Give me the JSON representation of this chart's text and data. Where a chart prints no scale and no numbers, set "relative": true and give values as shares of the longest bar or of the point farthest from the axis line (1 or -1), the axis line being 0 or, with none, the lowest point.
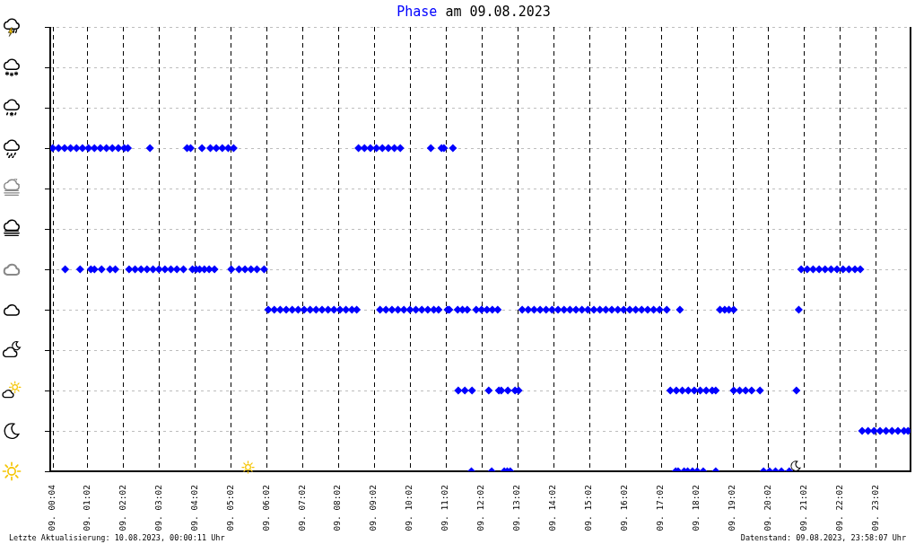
{
  "chart_data": {
    "type": "scatter",
    "title": "Phase am 09.08.2023",
    "relative": true,
    "x": [
      "2023-08-09T00:04",
      "2023-08-09T00:14",
      "2023-08-09T00:24",
      "2023-08-09T00:34",
      "2023-08-09T00:44",
      "2023-08-09T00:54",
      "2023-08-09T01:04",
      "2023-08-09T01:14",
      "2023-08-09T01:24",
      "2023-08-09T01:34",
      "2023-08-09T01:44",
      "2023-08-09T01:54",
      "2023-08-09T02:04",
      "2023-08-09T02:10",
      "2023-08-09T02:47",
      "2023-08-09T03:49",
      "2023-08-09T03:55",
      "2023-08-09T04:14",
      "2023-08-09T04:28",
      "2023-08-09T04:38",
      "2023-08-09T04:48",
      "2023-08-09T04:58",
      "2023-08-09T05:07",
      "2023-08-09T08:36",
      "2023-08-09T08:46",
      "2023-08-09T08:56",
      "2023-08-09T09:06",
      "2023-08-09T09:16",
      "2023-08-09T09:26",
      "2023-08-09T09:36",
      "2023-08-09T09:46",
      "2023-08-09T10:37",
      "2023-08-09T10:55",
      "2023-08-09T10:59",
      "2023-08-09T11:14",
      "2023-08-09T00:25",
      "2023-08-09T00:50",
      "2023-08-09T01:08",
      "2023-08-09T01:14",
      "2023-08-09T01:26",
      "2023-08-09T01:40",
      "2023-08-09T01:49",
      "2023-08-09T02:12",
      "2023-08-09T02:22",
      "2023-08-09T02:32",
      "2023-08-09T02:42",
      "2023-08-09T02:52",
      "2023-08-09T03:02",
      "2023-08-09T03:12",
      "2023-08-09T03:22",
      "2023-08-09T03:32",
      "2023-08-09T03:43",
      "2023-08-09T03:58",
      "2023-08-09T04:04",
      "2023-08-09T04:10",
      "2023-08-09T04:18",
      "2023-08-09T04:26",
      "2023-08-09T04:35",
      "2023-08-09T05:03",
      "2023-08-09T05:16",
      "2023-08-09T05:26",
      "2023-08-09T05:36",
      "2023-08-09T05:46",
      "2023-08-09T05:58",
      "2023-08-09T20:57",
      "2023-08-09T21:07",
      "2023-08-09T21:17",
      "2023-08-09T21:27",
      "2023-08-09T21:37",
      "2023-08-09T21:47",
      "2023-08-09T21:57",
      "2023-08-09T22:07",
      "2023-08-09T22:17",
      "2023-08-09T22:27",
      "2023-08-09T22:36",
      "2023-08-09T06:05",
      "2023-08-09T06:15",
      "2023-08-09T06:25",
      "2023-08-09T06:35",
      "2023-08-09T06:45",
      "2023-08-09T06:55",
      "2023-08-09T07:05",
      "2023-08-09T07:15",
      "2023-08-09T07:25",
      "2023-08-09T07:35",
      "2023-08-09T07:45",
      "2023-08-09T07:55",
      "2023-08-09T08:05",
      "2023-08-09T08:15",
      "2023-08-09T08:25",
      "2023-08-09T08:33",
      "2023-08-09T09:12",
      "2023-08-09T09:22",
      "2023-08-09T09:32",
      "2023-08-09T09:42",
      "2023-08-09T09:52",
      "2023-08-09T10:02",
      "2023-08-09T10:12",
      "2023-08-09T10:22",
      "2023-08-09T10:32",
      "2023-08-09T10:42",
      "2023-08-09T10:50",
      "2023-08-09T11:05",
      "2023-08-09T11:08",
      "2023-08-09T11:22",
      "2023-08-09T11:30",
      "2023-08-09T11:38",
      "2023-08-09T11:53",
      "2023-08-09T12:02",
      "2023-08-09T12:11",
      "2023-08-09T12:20",
      "2023-08-09T12:29",
      "2023-08-09T13:10",
      "2023-08-09T13:20",
      "2023-08-09T13:30",
      "2023-08-09T13:40",
      "2023-08-09T13:50",
      "2023-08-09T14:00",
      "2023-08-09T14:10",
      "2023-08-09T14:20",
      "2023-08-09T14:30",
      "2023-08-09T14:40",
      "2023-08-09T14:50",
      "2023-08-09T15:00",
      "2023-08-09T15:10",
      "2023-08-09T15:20",
      "2023-08-09T15:30",
      "2023-08-09T15:40",
      "2023-08-09T15:50",
      "2023-08-09T16:00",
      "2023-08-09T16:10",
      "2023-08-09T16:20",
      "2023-08-09T16:30",
      "2023-08-09T16:40",
      "2023-08-09T16:50",
      "2023-08-09T17:00",
      "2023-08-09T17:12",
      "2023-08-09T17:34",
      "2023-08-09T18:41",
      "2023-08-09T18:49",
      "2023-08-09T18:56",
      "2023-08-09T19:04",
      "2023-08-09T20:53",
      "2023-08-09T11:23",
      "2023-08-09T11:34",
      "2023-08-09T11:46",
      "2023-08-09T12:14",
      "2023-08-09T12:31",
      "2023-08-09T12:35",
      "2023-08-09T12:46",
      "2023-08-09T12:58",
      "2023-08-09T13:04",
      "2023-08-09T17:18",
      "2023-08-09T17:28",
      "2023-08-09T17:38",
      "2023-08-09T17:48",
      "2023-08-09T17:58",
      "2023-08-09T18:08",
      "2023-08-09T18:18",
      "2023-08-09T18:28",
      "2023-08-09T18:34",
      "2023-08-09T19:04",
      "2023-08-09T19:14",
      "2023-08-09T19:24",
      "2023-08-09T19:34",
      "2023-08-09T19:48",
      "2023-08-09T20:49",
      "2023-08-09T22:39",
      "2023-08-09T22:49",
      "2023-08-09T22:59",
      "2023-08-09T23:09",
      "2023-08-09T23:19",
      "2023-08-09T23:29",
      "2023-08-09T23:39",
      "2023-08-09T23:49",
      "2023-08-09T23:56",
      "2023-08-09T11:45",
      "2023-08-09T12:19",
      "2023-08-09T12:40",
      "2023-08-09T12:45",
      "2023-08-09T12:50",
      "2023-08-09T17:27",
      "2023-08-09T17:31",
      "2023-08-09T17:41",
      "2023-08-09T17:47",
      "2023-08-09T17:55",
      "2023-08-09T18:03",
      "2023-08-09T18:13",
      "2023-08-09T18:34",
      "2023-08-09T19:54",
      "2023-08-09T20:04",
      "2023-08-09T20:14",
      "2023-08-09T20:24",
      "2023-08-09T20:37"
    ],
    "values": [
      1,
      1,
      1,
      1,
      1,
      1,
      1,
      1,
      1,
      1,
      1,
      1,
      1,
      1,
      1,
      1,
      1,
      1,
      1,
      1,
      1,
      1,
      1,
      1,
      1,
      1,
      1,
      1,
      1,
      1,
      1,
      1,
      1,
      1,
      1,
      0.625,
      0.625,
      0.625,
      0.625,
      0.625,
      0.625,
      0.625,
      0.625,
      0.625,
      0.625,
      0.625,
      0.625,
      0.625,
      0.625,
      0.625,
      0.625,
      0.625,
      0.625,
      0.625,
      0.625,
      0.625,
      0.625,
      0.625,
      0.625,
      0.625,
      0.625,
      0.625,
      0.625,
      0.625,
      0.625,
      0.625,
      0.625,
      0.625,
      0.625,
      0.625,
      0.625,
      0.625,
      0.625,
      0.625,
      0.625,
      0.5,
      0.5,
      0.5,
      0.5,
      0.5,
      0.5,
      0.5,
      0.5,
      0.5,
      0.5,
      0.5,
      0.5,
      0.5,
      0.5,
      0.5,
      0.5,
      0.5,
      0.5,
      0.5,
      0.5,
      0.5,
      0.5,
      0.5,
      0.5,
      0.5,
      0.5,
      0.5,
      0.5,
      0.5,
      0.5,
      0.5,
      0.5,
      0.5,
      0.5,
      0.5,
      0.5,
      0.5,
      0.5,
      0.5,
      0.5,
      0.5,
      0.5,
      0.5,
      0.5,
      0.5,
      0.5,
      0.5,
      0.5,
      0.5,
      0.5,
      0.5,
      0.5,
      0.5,
      0.5,
      0.5,
      0.5,
      0.5,
      0.5,
      0.5,
      0.5,
      0.5,
      0.5,
      0.5,
      0.5,
      0.5,
      0.5,
      0.5,
      0.5,
      0.25,
      0.25,
      0.25,
      0.25,
      0.25,
      0.25,
      0.25,
      0.25,
      0.25,
      0.25,
      0.25,
      0.25,
      0.25,
      0.25,
      0.25,
      0.25,
      0.25,
      0.25,
      0.25,
      0.25,
      0.25,
      0.25,
      0.25,
      0.25,
      0.125,
      0.125,
      0.125,
      0.125,
      0.125,
      0.125,
      0.125,
      0.125,
      0.125,
      0,
      0,
      0,
      0,
      0,
      0,
      0,
      0,
      0,
      0,
      0,
      0,
      0,
      0,
      0,
      0,
      0,
      0
    ],
    "color": "#0000ff",
    "marker": "diamond",
    "xlim": [
      "2023-08-09T00:00",
      "2023-08-10T00:00"
    ],
    "xticks": [
      {
        "value": "2023-08-09T00:04",
        "label": "09. 00:04"
      },
      {
        "value": "2023-08-09T01:02",
        "label": "09. 01:02"
      },
      {
        "value": "2023-08-09T02:02",
        "label": "09. 02:02"
      },
      {
        "value": "2023-08-09T03:02",
        "label": "09. 03:02"
      },
      {
        "value": "2023-08-09T04:02",
        "label": "09. 04:02"
      },
      {
        "value": "2023-08-09T05:02",
        "label": "09. 05:02"
      },
      {
        "value": "2023-08-09T06:02",
        "label": "09. 06:02"
      },
      {
        "value": "2023-08-09T07:02",
        "label": "09. 07:02"
      },
      {
        "value": "2023-08-09T08:02",
        "label": "09. 08:02"
      },
      {
        "value": "2023-08-09T09:02",
        "label": "09. 09:02"
      },
      {
        "value": "2023-08-09T10:02",
        "label": "09. 10:02"
      },
      {
        "value": "2023-08-09T11:02",
        "label": "09. 11:02"
      },
      {
        "value": "2023-08-09T12:02",
        "label": "09. 12:02"
      },
      {
        "value": "2023-08-09T13:02",
        "label": "09. 13:02"
      },
      {
        "value": "2023-08-09T14:02",
        "label": "09. 14:02"
      },
      {
        "value": "2023-08-09T15:02",
        "label": "09. 15:02"
      },
      {
        "value": "2023-08-09T16:02",
        "label": "09. 16:02"
      },
      {
        "value": "2023-08-09T17:02",
        "label": "09. 17:02"
      },
      {
        "value": "2023-08-09T18:02",
        "label": "09. 18:02"
      },
      {
        "value": "2023-08-09T19:02",
        "label": "09. 19:02"
      },
      {
        "value": "2023-08-09T20:02",
        "label": "09. 20:02"
      },
      {
        "value": "2023-08-09T21:02",
        "label": "09. 21:02"
      },
      {
        "value": "2023-08-09T22:02",
        "label": "09. 22:02"
      },
      {
        "value": "2023-08-09T23:02",
        "label": "09. 23:02"
      }
    ],
    "tick_labels": "x",
    "grid": true,
    "annotations": [
      "Letzte Aktualisierung: 10.08.2023, 00:00:11 Uhr",
      "Datenstand: 09.08.2023, 23:58:07 Uhr"
    ]
  }
}
